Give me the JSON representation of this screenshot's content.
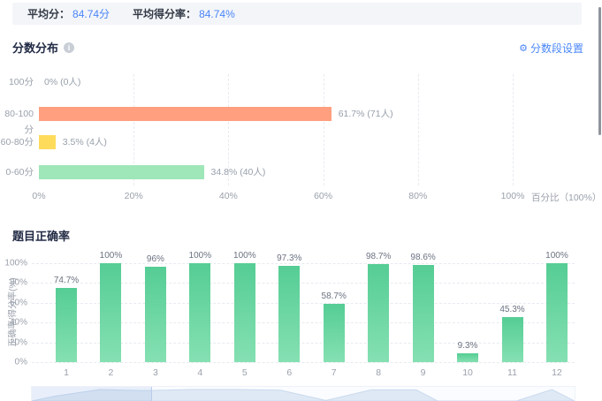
{
  "header": {
    "avg_score_label": "平均分：",
    "avg_score_value": "84.74分",
    "avg_rate_label": "平均得分率：",
    "avg_rate_value": "84.74%"
  },
  "score_section": {
    "title": "分数分布",
    "info_icon_glyph": "i",
    "settings_icon_glyph": "⚙",
    "settings_label": "分数段设置"
  },
  "accuracy_section": {
    "title": "题目正确率"
  },
  "colors": {
    "accent_blue": "#4a86f8",
    "bar_orange": "#FF9F7F",
    "bar_yellow": "#FFDB5C",
    "bar_green_light": "#9FE6B8",
    "bar_green_top": "#55cd94",
    "bar_green_bottom": "#85e0b2",
    "axis_text": "#9aa0ab"
  },
  "chart_data": [
    {
      "type": "bar",
      "orientation": "horizontal",
      "title": "分数分布",
      "categories": [
        "100分",
        "80-100分",
        "60-80分",
        "0-60分"
      ],
      "values": [
        0,
        61.7,
        3.5,
        34.8
      ],
      "counts": [
        0,
        71,
        4,
        40
      ],
      "data_labels": [
        "0% (0人)",
        "61.7% (71人)",
        "3.5% (4人)",
        "34.8% (40人)"
      ],
      "bar_colors": [
        null,
        "#FF9F7F",
        "#FFDB5C",
        "#9FE6B8"
      ],
      "x_ticks": [
        "0%",
        "20%",
        "40%",
        "60%",
        "80%",
        "100%"
      ],
      "x_tick_values": [
        0,
        20,
        40,
        60,
        80,
        100
      ],
      "x_axis_name": "百分比（100%）",
      "xlim": [
        0,
        100
      ],
      "grid": "dashed-vertical"
    },
    {
      "type": "bar",
      "orientation": "vertical",
      "title": "题目正确率",
      "categories": [
        "1",
        "2",
        "3",
        "4",
        "5",
        "6",
        "7",
        "8",
        "9",
        "10",
        "11",
        "12"
      ],
      "values": [
        74.7,
        100,
        96,
        100,
        100,
        97.3,
        58.7,
        98.7,
        98.6,
        9.3,
        45.3,
        100
      ],
      "data_labels": [
        "74.7%",
        "100%",
        "96%",
        "100%",
        "100%",
        "97.3%",
        "58.7%",
        "98.7%",
        "98.6%",
        "9.3%",
        "45.3%",
        "100%"
      ],
      "ylabel": "正确率/得分率(%)",
      "y_ticks": [
        "0%",
        "20%",
        "40%",
        "60%",
        "80%",
        "100%"
      ],
      "y_tick_values": [
        0,
        20,
        40,
        60,
        80,
        100
      ],
      "ylim": [
        0,
        100
      ],
      "grid": "dashed-horizontal",
      "datazoom": {
        "window_percent": [
          0,
          22
        ]
      }
    }
  ]
}
